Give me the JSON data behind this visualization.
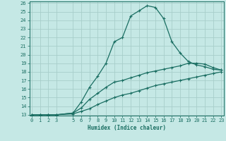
{
  "xlabel": "Humidex (Indice chaleur)",
  "bg_color": "#c5e8e5",
  "grid_color": "#a8ceca",
  "line_color": "#1a6e62",
  "xlim": [
    0,
    23
  ],
  "ylim": [
    13,
    26
  ],
  "xtick_vals": [
    0,
    1,
    2,
    3,
    5,
    6,
    7,
    8,
    9,
    10,
    11,
    12,
    13,
    14,
    15,
    16,
    17,
    18,
    19,
    20,
    21,
    22,
    23
  ],
  "ytick_vals": [
    13,
    14,
    15,
    16,
    17,
    18,
    19,
    20,
    21,
    22,
    23,
    24,
    25,
    26
  ],
  "line1_x": [
    0,
    1,
    2,
    3,
    5,
    6,
    7,
    8,
    9,
    10,
    11,
    12,
    13,
    14,
    15,
    16,
    17,
    18,
    19,
    20,
    21,
    22,
    23
  ],
  "line1_y": [
    13,
    13,
    13,
    13,
    13.2,
    14.5,
    16.2,
    17.5,
    19.0,
    21.5,
    22.0,
    24.5,
    25.1,
    25.7,
    25.5,
    24.2,
    21.5,
    20.2,
    19.2,
    18.8,
    18.6,
    18.3,
    18.2
  ],
  "line2_x": [
    0,
    1,
    2,
    3,
    5,
    6,
    7,
    8,
    9,
    10,
    11,
    12,
    13,
    14,
    15,
    16,
    17,
    18,
    19,
    20,
    21,
    22,
    23
  ],
  "line2_y": [
    13,
    13,
    13,
    13,
    13.2,
    13.8,
    14.8,
    15.5,
    16.2,
    16.8,
    17.0,
    17.3,
    17.6,
    17.9,
    18.1,
    18.3,
    18.5,
    18.7,
    19.0,
    19.0,
    18.9,
    18.5,
    18.2
  ],
  "line3_x": [
    0,
    1,
    2,
    3,
    5,
    6,
    7,
    8,
    9,
    10,
    11,
    12,
    13,
    14,
    15,
    16,
    17,
    18,
    19,
    20,
    21,
    22,
    23
  ],
  "line3_y": [
    13,
    13,
    13,
    13,
    13.1,
    13.4,
    13.7,
    14.2,
    14.6,
    15.0,
    15.3,
    15.5,
    15.8,
    16.1,
    16.4,
    16.6,
    16.8,
    17.0,
    17.2,
    17.4,
    17.6,
    17.8,
    18.0
  ]
}
